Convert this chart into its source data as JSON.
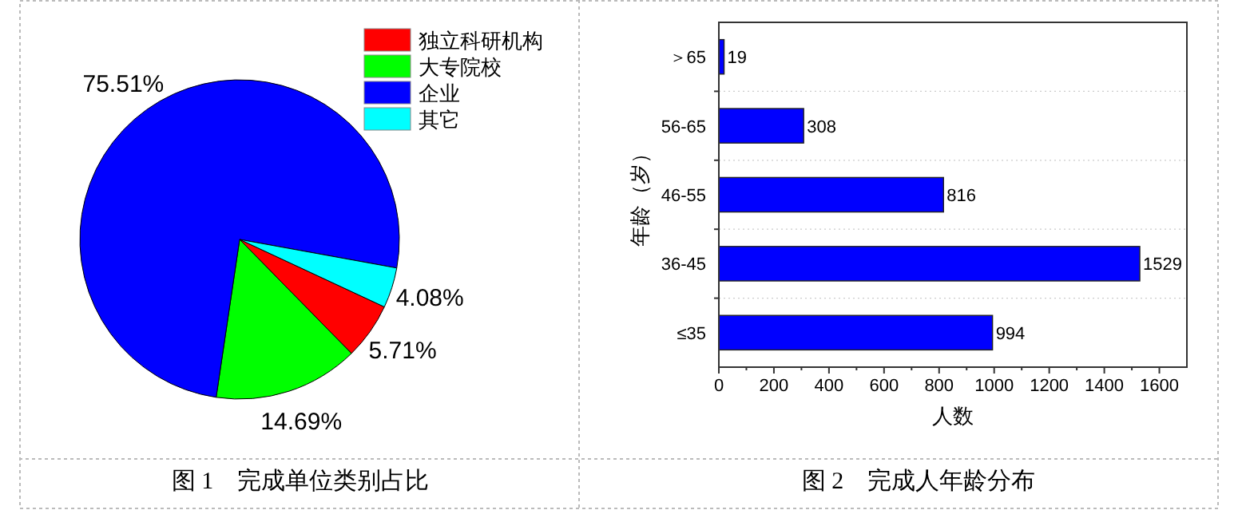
{
  "chart_data": [
    {
      "type": "pie",
      "title": "图 1　完成单位类别占比",
      "categories": [
        "独立科研机构",
        "大专院校",
        "企业",
        "其它"
      ],
      "values": [
        5.71,
        14.69,
        75.51,
        4.08
      ],
      "colors": [
        "#ff0000",
        "#00ff00",
        "#0000ff",
        "#00ffff"
      ],
      "value_labels": [
        "5.71%",
        "14.69%",
        "75.51%",
        "4.08%"
      ],
      "legend": "top right"
    },
    {
      "type": "bar",
      "orientation": "horizontal",
      "title": "图 2　完成人年龄分布",
      "xlabel": "人数",
      "ylabel": "年龄（岁）",
      "categories": [
        "＞65",
        "56-65",
        "46-55",
        "36-45",
        "≤35"
      ],
      "values": [
        19,
        308,
        816,
        1529,
        994
      ],
      "color": "#0000ff",
      "xlim": [
        0,
        1700
      ],
      "xticks": [
        0,
        200,
        400,
        600,
        800,
        1000,
        1200,
        1400,
        1600
      ],
      "data_labels": true,
      "grid": "y"
    }
  ]
}
